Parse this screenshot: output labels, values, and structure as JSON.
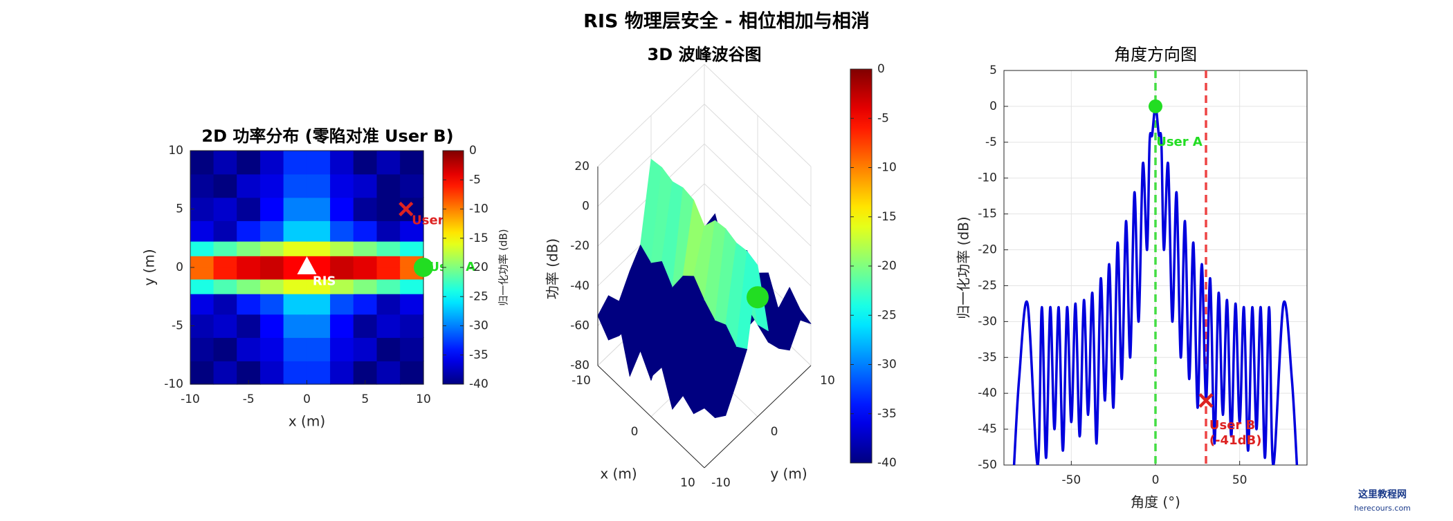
{
  "figure_title": "RIS 物理层安全 - 相位相加与相消",
  "watermark": [
    "这里教程网",
    "herecours.com"
  ],
  "chart_data": [
    {
      "type": "heatmap",
      "title": "2D 功率分布 (零陷对准 User B)",
      "xlabel": "x (m)",
      "ylabel": "y (m)",
      "x": [
        -9,
        -7,
        -5,
        -3,
        -1,
        1,
        3,
        5,
        7,
        9
      ],
      "y": [
        -9,
        -7,
        -5,
        -3,
        -1.5,
        -0.5,
        0.5,
        1.5,
        3,
        5,
        7,
        9
      ],
      "z": [
        [
          -40,
          -38,
          -40,
          -37,
          -33,
          -33,
          -37,
          -40,
          -38,
          -40
        ],
        [
          -39,
          -40,
          -37,
          -36,
          -32,
          -32,
          -36,
          -37,
          -40,
          -39
        ],
        [
          -38,
          -37,
          -39,
          -35,
          -30,
          -30,
          -35,
          -39,
          -37,
          -38
        ],
        [
          -36,
          -38,
          -34,
          -32,
          -27,
          -27,
          -32,
          -34,
          -38,
          -36
        ],
        [
          -24,
          -22,
          -20,
          -18,
          -16,
          -16,
          -18,
          -20,
          -22,
          -24
        ],
        [
          -9,
          -6,
          -4,
          -3,
          -5,
          -5,
          -3,
          -4,
          -6,
          -9
        ],
        [
          -9,
          -6,
          -4,
          -3,
          -5,
          -5,
          -3,
          -4,
          -6,
          -9
        ],
        [
          -24,
          -22,
          -20,
          -18,
          -16,
          -16,
          -18,
          -20,
          -22,
          -24
        ],
        [
          -36,
          -38,
          -34,
          -32,
          -27,
          -27,
          -32,
          -34,
          -38,
          -36
        ],
        [
          -38,
          -37,
          -39,
          -35,
          -30,
          -30,
          -35,
          -39,
          -40,
          -40
        ],
        [
          -39,
          -40,
          -37,
          -36,
          -32,
          -32,
          -36,
          -37,
          -40,
          -39
        ],
        [
          -40,
          -38,
          -40,
          -37,
          -33,
          -33,
          -37,
          -40,
          -38,
          -40
        ]
      ],
      "xlim": [
        -10,
        10
      ],
      "ylim": [
        -10,
        10
      ],
      "xticks": [
        -10,
        -5,
        0,
        5,
        10
      ],
      "yticks": [
        -10,
        -5,
        0,
        5,
        10
      ],
      "clim": [
        -40,
        0
      ],
      "cticks": [
        0,
        -5,
        -10,
        -15,
        -20,
        -25,
        -30,
        -35,
        -40
      ],
      "colorbar_label": "归一化功率 (dB)",
      "colormap": "jet",
      "markers": [
        {
          "label": [
            "RIS"
          ],
          "x": 0,
          "y": 0,
          "symbol": "triangle",
          "color": "#ffffff",
          "label_at": [
            0.5,
            -1.2
          ]
        },
        {
          "label": [
            "User A"
          ],
          "x": 10,
          "y": 0,
          "symbol": "circle",
          "color": "#22dd22",
          "label_at": [
            10.5,
            0
          ]
        },
        {
          "label": [
            "User B"
          ],
          "x": 8.5,
          "y": 5,
          "symbol": "x",
          "color": "#dd2222",
          "label_at": [
            9,
            4
          ]
        }
      ]
    },
    {
      "type": "surface3d",
      "title": "3D 波峰波谷图",
      "xlabel": "x (m)",
      "ylabel": "y (m)",
      "zlabel": "功率 (dB)",
      "x": [
        -10,
        -8,
        -6,
        -4,
        -2,
        0,
        2,
        4,
        6,
        8,
        10
      ],
      "y": [
        -10,
        -8,
        -6,
        -4,
        -2,
        0,
        2,
        4,
        6,
        8,
        10
      ],
      "z": [
        [
          -55,
          -62,
          -48,
          -70,
          -52,
          -60,
          -50,
          -66,
          -54,
          -58,
          -50
        ],
        [
          -50,
          -65,
          -55,
          -60,
          -72,
          -48,
          -63,
          -57,
          -68,
          -52,
          -60
        ],
        [
          -58,
          -52,
          -67,
          -50,
          -61,
          -56,
          -70,
          -49,
          -62,
          -55,
          -64
        ],
        [
          -48,
          -60,
          -53,
          -66,
          -51,
          -45,
          -58,
          -63,
          -50,
          -67,
          -53
        ],
        [
          -40,
          -44,
          -38,
          -46,
          -35,
          -30,
          -37,
          -42,
          -39,
          -45,
          -41
        ],
        [
          -2,
          -1,
          -3,
          -1,
          -2,
          -10,
          -2,
          -1,
          -3,
          -2,
          -4
        ],
        [
          -38,
          -43,
          -36,
          -45,
          -33,
          -28,
          -35,
          -41,
          -40,
          -44,
          -42
        ],
        [
          -52,
          -49,
          -60,
          -55,
          -47,
          -44,
          -57,
          -61,
          -50,
          -58,
          -56
        ],
        [
          -60,
          -54,
          -48,
          -63,
          -58,
          -52,
          -66,
          -51,
          -59,
          -49,
          -62
        ],
        [
          -53,
          -67,
          -57,
          -50,
          -64,
          -55,
          -49,
          -60,
          -56,
          -63,
          -52
        ],
        [
          -62,
          -50,
          -65,
          -58,
          -53,
          -61,
          -54,
          -68,
          -51,
          -57,
          -59
        ]
      ],
      "xlim": [
        -10,
        10
      ],
      "ylim": [
        -10,
        10
      ],
      "zlim": [
        -80,
        20
      ],
      "xticks": [
        -10,
        0,
        10
      ],
      "yticks": [
        -10,
        0,
        10
      ],
      "zticks": [
        -80,
        -60,
        -40,
        -20,
        0,
        20
      ],
      "clim": [
        -40,
        0
      ],
      "cticks": [
        0,
        -5,
        -10,
        -15,
        -20,
        -25,
        -30,
        -35,
        -40
      ],
      "colormap": "jet",
      "markers": [
        {
          "x": 10,
          "y": 0,
          "z": -20,
          "color": "#22dd22"
        }
      ]
    },
    {
      "type": "line",
      "title": "角度方向图",
      "xlabel": "角度 (°)",
      "ylabel": "归一化功率 (dB)",
      "x": [
        -84,
        -81,
        -76,
        -70,
        -67.5,
        -65,
        -62.5,
        -60,
        -57.5,
        -55,
        -52.5,
        -50,
        -47.5,
        -45,
        -42.5,
        -40,
        -37.5,
        -35,
        -32.5,
        -30,
        -27.5,
        -25,
        -22.5,
        -20,
        -17.5,
        -15,
        -12.5,
        -10,
        -7.5,
        -5,
        -3.5,
        -2,
        0,
        2,
        3.5,
        5,
        7.5,
        10,
        12.5,
        15,
        17.5,
        20,
        22.5,
        25,
        27.5,
        30,
        32.5,
        35,
        37.5,
        40,
        42.5,
        45,
        47.5,
        50,
        52.5,
        55,
        57.5,
        60,
        62.5,
        65,
        67.5,
        70,
        76,
        81,
        84
      ],
      "series": [
        {
          "color": "#0000dd",
          "values": [
            -50,
            -38,
            -27.5,
            -50,
            -28,
            -49,
            -28,
            -45,
            -28,
            -48,
            -28,
            -44,
            -27.5,
            -46,
            -27,
            -43,
            -26,
            -47,
            -24,
            -41,
            -22,
            -42,
            -19,
            -38,
            -16,
            -35,
            -12,
            -30,
            -8,
            -20,
            -5,
            -4,
            0,
            -4,
            -5,
            -20,
            -8,
            -30,
            -12,
            -35,
            -16,
            -38,
            -19,
            -42,
            -22,
            -41,
            -24,
            -47,
            -26,
            -43,
            -27,
            -46,
            -27.5,
            -44,
            -28,
            -48,
            -28,
            -45,
            -28,
            -49,
            -28,
            -50,
            -27.5,
            -38,
            -50
          ]
        }
      ],
      "xlim": [
        -90,
        90
      ],
      "ylim": [
        -50,
        5
      ],
      "xticks": [
        -50,
        0,
        50
      ],
      "yticks": [
        5,
        0,
        -5,
        -10,
        -15,
        -20,
        -25,
        -30,
        -35,
        -40,
        -45,
        -50
      ],
      "grid": true,
      "vlines": [
        {
          "x": 0,
          "color": "#44dd44"
        },
        {
          "x": 30,
          "color": "#ee4444"
        }
      ],
      "markers": [
        {
          "label": [
            "User A"
          ],
          "x": 0,
          "y": 0,
          "symbol": "circle",
          "color": "#22dd22",
          "label_at": [
            0.5,
            -5
          ]
        },
        {
          "label": [
            "User B",
            "(-41dB)"
          ],
          "x": 30,
          "y": -41,
          "symbol": "x",
          "color": "#dd2222",
          "label_at": [
            32,
            -44.5
          ]
        }
      ]
    }
  ]
}
